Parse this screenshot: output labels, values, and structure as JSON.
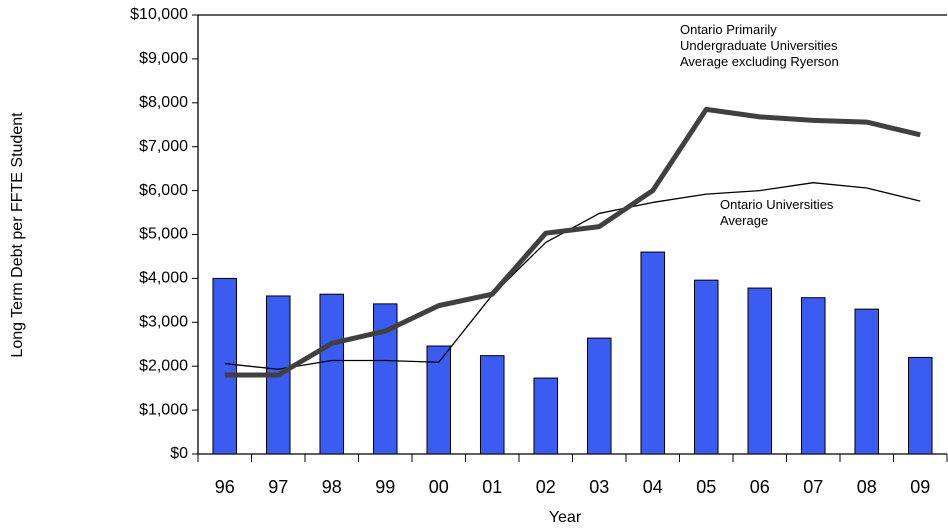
{
  "chart_data": {
    "type": "bar",
    "x_label": "Year",
    "y_label": "Long Term Debt per FFTE Student",
    "categories": [
      "96",
      "97",
      "98",
      "99",
      "00",
      "01",
      "02",
      "03",
      "04",
      "05",
      "06",
      "07",
      "08",
      "09"
    ],
    "bars": {
      "color": "#3b5cf0",
      "values": [
        4000,
        3600,
        3640,
        3420,
        2460,
        2240,
        1730,
        2640,
        4600,
        3960,
        3780,
        3560,
        3300,
        2200
      ]
    },
    "series": [
      {
        "name": "Ontario Primarily Undergraduate Universities Average excluding Ryerson",
        "color": "#404040",
        "width": 5,
        "values": [
          1800,
          1800,
          2520,
          2800,
          3380,
          3640,
          5030,
          5180,
          6000,
          7850,
          7680,
          7600,
          7560,
          7270
        ]
      },
      {
        "name": "Ontario Universities Average",
        "color": "#000000",
        "width": 1.3,
        "values": [
          2060,
          1930,
          2130,
          2130,
          2090,
          3620,
          4820,
          5480,
          5730,
          5920,
          6000,
          6180,
          6060,
          5760
        ]
      }
    ],
    "ylim": [
      0,
      10000
    ],
    "yticks": [
      {
        "value": 0,
        "label": "$0"
      },
      {
        "value": 1000,
        "label": "$1,000"
      },
      {
        "value": 2000,
        "label": "$2,000"
      },
      {
        "value": 3000,
        "label": "$3,000"
      },
      {
        "value": 4000,
        "label": "$4,000"
      },
      {
        "value": 5000,
        "label": "$5,000"
      },
      {
        "value": 6000,
        "label": "$6,000"
      },
      {
        "value": 7000,
        "label": "$7,000"
      },
      {
        "value": 8000,
        "label": "$8,000"
      },
      {
        "value": 9000,
        "label": "$9,000"
      },
      {
        "value": 10000,
        "label": "$10,000"
      }
    ],
    "grid": false
  }
}
